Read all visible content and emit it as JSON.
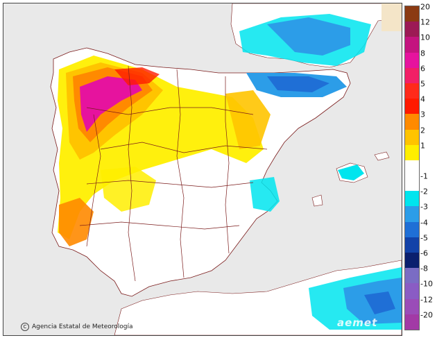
{
  "credit": {
    "copyright_symbol": "C",
    "organization": "Agencia Estatal de Meteorología"
  },
  "logo": {
    "text": "aemet"
  },
  "legend": {
    "levels": [
      {
        "label": "20",
        "color": "#8b3a12"
      },
      {
        "label": "12",
        "color": "#9c1a55"
      },
      {
        "label": "10",
        "color": "#c4147f"
      },
      {
        "label": "8",
        "color": "#e6139e"
      },
      {
        "label": "6",
        "color": "#f21f66"
      },
      {
        "label": "5",
        "color": "#ff2a1a"
      },
      {
        "label": "4",
        "color": "#ff1a00"
      },
      {
        "label": "3",
        "color": "#ff8a00"
      },
      {
        "label": "2",
        "color": "#ffc400"
      },
      {
        "label": "1",
        "color": "#ffef00"
      },
      {
        "label": "",
        "color": "#ffffff"
      },
      {
        "label": "-1",
        "color": "#ffffff"
      },
      {
        "label": "-2",
        "color": "#00e5ee"
      },
      {
        "label": "-3",
        "color": "#2c9de8"
      },
      {
        "label": "-4",
        "color": "#1f6fd6"
      },
      {
        "label": "-5",
        "color": "#1242a8"
      },
      {
        "label": "-6",
        "color": "#0a1f6e"
      },
      {
        "label": "-8",
        "color": "#7a6cc4"
      },
      {
        "label": "-10",
        "color": "#8a5cc4"
      },
      {
        "label": "-12",
        "color": "#9a4cb8"
      },
      {
        "label": "-20",
        "color": "#a23aa6"
      }
    ]
  },
  "colors": {
    "sea": "#e9e9e9",
    "land": "#ffffff",
    "border": "#7a1a1a",
    "yellow": "#ffef00",
    "gold": "#ffc400",
    "orange": "#ff8a00",
    "red": "#ff1a00",
    "magenta": "#e6139e",
    "cyan": "#00e5ee",
    "blue": "#2c9de8",
    "darkblue": "#1f6fd6"
  }
}
